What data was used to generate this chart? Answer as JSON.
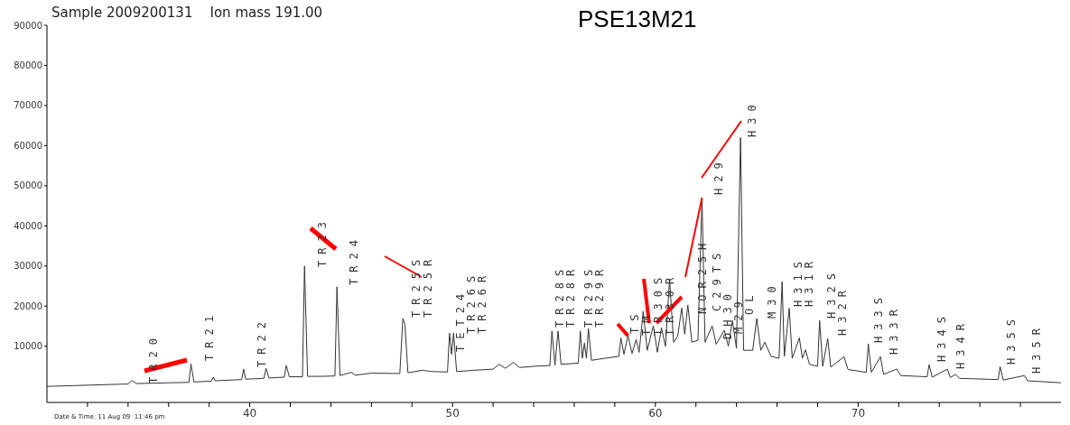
{
  "chart_data": {
    "type": "line",
    "title": "PSE13M21",
    "subtitle": "Sample 2009200131    Ion mass 191.00",
    "marker": "none",
    "color": "#333333",
    "xlim": [
      30,
      80
    ],
    "xticks": [
      {
        "value": 32,
        "label": null
      },
      {
        "value": 34,
        "label": null
      },
      {
        "value": 36,
        "label": null
      },
      {
        "value": 38,
        "label": null
      },
      40,
      {
        "value": 42,
        "label": null
      },
      {
        "value": 44,
        "label": null
      },
      {
        "value": 46,
        "label": null
      },
      {
        "value": 48,
        "label": null
      },
      50,
      {
        "value": 52,
        "label": null
      },
      {
        "value": 54,
        "label": null
      },
      {
        "value": 56,
        "label": null
      },
      {
        "value": 58,
        "label": null
      },
      60,
      {
        "value": 62,
        "label": null
      },
      {
        "value": 64,
        "label": null
      },
      {
        "value": 66,
        "label": null
      },
      {
        "value": 68,
        "label": null
      },
      70,
      {
        "value": 72,
        "label": null
      },
      {
        "value": 74,
        "label": null
      },
      {
        "value": 76,
        "label": null
      },
      {
        "value": 78,
        "label": null
      }
    ],
    "ylim": [
      -4000,
      90000
    ],
    "yticks": [
      10000,
      20000,
      30000,
      40000,
      50000,
      60000,
      70000,
      80000,
      90000
    ],
    "x": [
      30,
      32,
      34,
      34.2,
      34.4,
      36,
      37.0,
      37.1,
      37.25,
      38.1,
      38.2,
      38.3,
      39.6,
      39.7,
      39.8,
      40.7,
      40.8,
      40.95,
      41.7,
      41.8,
      41.95,
      42.6,
      42.7,
      42.85,
      43.5,
      44.2,
      44.3,
      44.45,
      45,
      45.2,
      46,
      47.4,
      47.55,
      47.65,
      47.8,
      48.5,
      49,
      49.75,
      49.85,
      49.95,
      50.05,
      50.2,
      51,
      52,
      52.3,
      52.6,
      53,
      53.3,
      54,
      54.8,
      54.9,
      55.05,
      55.2,
      55.35,
      56.2,
      56.3,
      56.4,
      56.5,
      56.6,
      56.7,
      56.85,
      57.5,
      58.2,
      58.3,
      58.45,
      58.65,
      58.85,
      59.05,
      59.2,
      59.4,
      59.6,
      59.9,
      60.1,
      60.3,
      60.5,
      60.7,
      60.9,
      61.1,
      61.3,
      61.45,
      61.6,
      61.8,
      62.1,
      62.3,
      62.45,
      62.8,
      63.0,
      63.4,
      63.6,
      63.8,
      64.0,
      64.2,
      64.35,
      64.8,
      65.0,
      65.2,
      65.4,
      65.7,
      66.1,
      66.25,
      66.36,
      66.6,
      66.75,
      67.1,
      67.25,
      67.4,
      67.6,
      68.0,
      68.1,
      68.25,
      68.5,
      68.65,
      69.3,
      69.5,
      70.4,
      70.5,
      70.65,
      71.1,
      71.25,
      71.9,
      72.1,
      73.4,
      73.5,
      73.65,
      74.4,
      74.55,
      74.8,
      75,
      76.9,
      77.0,
      77.15,
      78.2,
      78.35,
      80
    ],
    "values": [
      0,
      300,
      600,
      1500,
      700,
      900,
      1000,
      5600,
      1100,
      1300,
      2300,
      1400,
      1700,
      4300,
      1800,
      2000,
      4500,
      2100,
      2300,
      5200,
      2400,
      2400,
      30000,
      2500,
      2500,
      2600,
      24800,
      2700,
      3500,
      2800,
      3300,
      3200,
      16900,
      15500,
      3400,
      4000,
      3700,
      3600,
      13300,
      8000,
      13300,
      3700,
      4000,
      4300,
      5500,
      4500,
      6000,
      4700,
      5000,
      5200,
      13800,
      5300,
      13800,
      5500,
      5800,
      13800,
      7000,
      10800,
      7000,
      14400,
      6500,
      7000,
      7500,
      12100,
      8000,
      12600,
      8200,
      11700,
      8500,
      18700,
      9000,
      15100,
      8500,
      14600,
      10000,
      26800,
      11000,
      12500,
      19500,
      13000,
      20300,
      11000,
      11500,
      47000,
      11000,
      15100,
      10500,
      14000,
      10000,
      16400,
      9500,
      62000,
      9000,
      9000,
      16900,
      9000,
      11000,
      7500,
      7000,
      26100,
      7500,
      19500,
      7000,
      12100,
      7000,
      9100,
      5500,
      5000,
      16400,
      5000,
      11900,
      4800,
      7400,
      4200,
      3500,
      10600,
      3500,
      7400,
      3000,
      4300,
      2700,
      2400,
      5400,
      2300,
      4300,
      2200,
      3000,
      2000,
      1700,
      4900,
      1600,
      2700,
      1400,
      900
    ],
    "annotations": [
      "TR20",
      "TR21",
      "TR22",
      "TR23",
      "TR24",
      "TR25S",
      "TR25R",
      "TET24",
      "TR26S",
      "TR26R",
      "TR28S",
      "TR28R",
      "TR29S",
      {
        "text": "TR29R",
        "x": 58.65,
        "y": 12600
      },
      "TS",
      "TM",
      "TR30S",
      {
        "text": "TR30R",
        "x": 62.3,
        "y": 47000
      },
      "NOR25H",
      "H29",
      "C29TS",
      "DH30",
      "M29",
      "OL",
      "H30",
      "M30",
      "H31S",
      "H31R",
      "H32S",
      "H32R",
      "H33S",
      "H33R",
      "H34S",
      "H34R",
      "H35S",
      "H35R",
      "Date & Time: 11 Aug 09  11:46 pm"
    ]
  }
}
